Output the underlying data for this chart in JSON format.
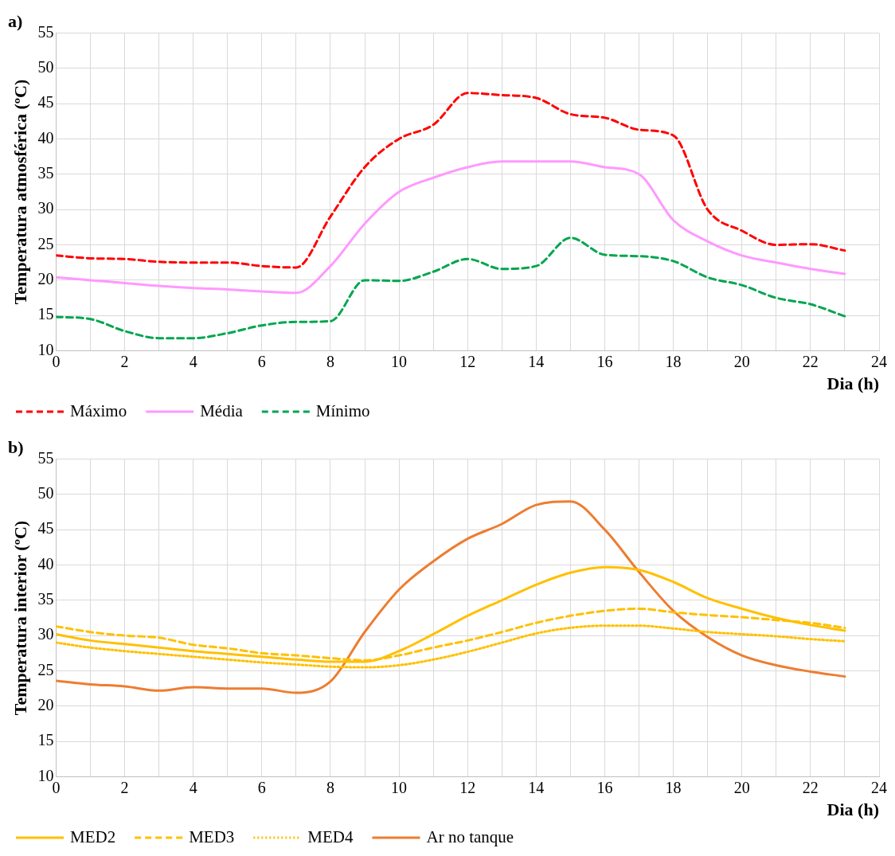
{
  "chart_data": [
    {
      "type": "line",
      "title": "a)",
      "ylabel": "Temperatura atmosférica (ºC)",
      "xlabel": "Dia (h)",
      "legend": "bottom",
      "grid": true,
      "marker": "none",
      "x": [
        0,
        1,
        2,
        3,
        4,
        5,
        6,
        7,
        8,
        9,
        10,
        11,
        12,
        13,
        14,
        15,
        16,
        17,
        18,
        19,
        20,
        21,
        22,
        23
      ],
      "xlim": [
        0,
        24
      ],
      "xticks": [
        0,
        {
          "value": 1,
          "label": null
        },
        2,
        {
          "value": 3,
          "label": null
        },
        4,
        {
          "value": 5,
          "label": null
        },
        6,
        {
          "value": 7,
          "label": null
        },
        8,
        {
          "value": 9,
          "label": null
        },
        10,
        {
          "value": 11,
          "label": null
        },
        12,
        {
          "value": 13,
          "label": null
        },
        14,
        {
          "value": 15,
          "label": null
        },
        16,
        {
          "value": 17,
          "label": null
        },
        18,
        {
          "value": 19,
          "label": null
        },
        20,
        {
          "value": 21,
          "label": null
        },
        22,
        {
          "value": 23,
          "label": null
        },
        24
      ],
      "ylim": [
        10,
        55
      ],
      "yticks": [
        10,
        15,
        20,
        25,
        30,
        35,
        40,
        45,
        50,
        55
      ],
      "series": [
        {
          "name": "Máximo",
          "color": "#ff0000",
          "line_style": "dashed",
          "values": [
            23.5,
            23.1,
            23,
            22.6,
            22.5,
            22.5,
            22,
            21.8,
            29,
            36,
            40,
            42,
            46.5,
            46.2,
            45.8,
            43.5,
            43,
            41.3,
            40.5,
            30,
            27,
            25,
            25.1,
            24.2
          ]
        },
        {
          "name": "Média",
          "color": "#ff99ff",
          "line_style": "solid",
          "values": [
            20.4,
            20,
            19.6,
            19.2,
            18.9,
            18.7,
            18.4,
            18.2,
            22,
            28,
            32.5,
            34.5,
            36,
            36.8,
            36.8,
            36.8,
            36,
            35,
            28.5,
            25.5,
            23.5,
            22.5,
            21.6,
            20.9
          ]
        },
        {
          "name": "Mínimo",
          "color": "#00a650",
          "line_style": "dashed",
          "values": [
            14.8,
            14.5,
            12.8,
            11.8,
            11.8,
            12.5,
            13.6,
            14.1,
            14.2,
            20,
            19.9,
            21.2,
            23,
            21.6,
            22,
            26,
            23.6,
            23.4,
            22.7,
            20.4,
            19.3,
            17.5,
            16.6,
            14.9
          ]
        }
      ]
    },
    {
      "type": "line",
      "title": "b)",
      "ylabel": "Temperatura interior (ºC)",
      "xlabel": "Dia (h)",
      "legend": "bottom",
      "grid": true,
      "marker": "none",
      "x": [
        0,
        1,
        2,
        3,
        4,
        5,
        6,
        7,
        8,
        9,
        10,
        11,
        12,
        13,
        14,
        15,
        16,
        17,
        18,
        19,
        20,
        21,
        22,
        23
      ],
      "xlim": [
        0,
        24
      ],
      "xticks": [
        0,
        {
          "value": 1,
          "label": null
        },
        2,
        {
          "value": 3,
          "label": null
        },
        4,
        {
          "value": 5,
          "label": null
        },
        6,
        {
          "value": 7,
          "label": null
        },
        8,
        {
          "value": 9,
          "label": null
        },
        10,
        {
          "value": 11,
          "label": null
        },
        12,
        {
          "value": 13,
          "label": null
        },
        14,
        {
          "value": 15,
          "label": null
        },
        16,
        {
          "value": 17,
          "label": null
        },
        18,
        {
          "value": 19,
          "label": null
        },
        20,
        {
          "value": 21,
          "label": null
        },
        22,
        {
          "value": 23,
          "label": null
        },
        24
      ],
      "ylim": [
        10,
        55
      ],
      "yticks": [
        10,
        15,
        20,
        25,
        30,
        35,
        40,
        45,
        50,
        55
      ],
      "series": [
        {
          "name": "MED2",
          "color": "#ffc000",
          "line_style": "solid",
          "values": [
            30.2,
            29.3,
            28.8,
            28.3,
            27.8,
            27.4,
            27,
            26.6,
            26.3,
            26.3,
            27.8,
            30.2,
            32.8,
            35,
            37.2,
            38.9,
            39.7,
            39.3,
            37.6,
            35.3,
            33.8,
            32.5,
            31.5,
            30.7
          ]
        },
        {
          "name": "MED3",
          "color": "#ffc000",
          "line_style": "dashed",
          "values": [
            31.3,
            30.5,
            30,
            29.7,
            28.7,
            28.2,
            27.5,
            27.2,
            26.8,
            26.5,
            27.2,
            28.3,
            29.3,
            30.5,
            31.8,
            32.8,
            33.5,
            33.8,
            33.3,
            32.9,
            32.6,
            32.2,
            31.8,
            31.1
          ]
        },
        {
          "name": "MED4",
          "color": "#ffc000",
          "line_style": "dotted",
          "values": [
            29,
            28.3,
            27.8,
            27.4,
            27,
            26.6,
            26.2,
            25.9,
            25.6,
            25.5,
            25.8,
            26.6,
            27.7,
            29,
            30.3,
            31.1,
            31.4,
            31.4,
            31,
            30.5,
            30.2,
            29.9,
            29.5,
            29.2
          ]
        },
        {
          "name": "Ar no tanque",
          "color": "#ed7d31",
          "line_style": "solid",
          "values": [
            23.6,
            23.1,
            22.8,
            22.2,
            22.7,
            22.5,
            22.5,
            21.9,
            23.5,
            30.5,
            36.5,
            40.5,
            43.7,
            45.8,
            48.5,
            49,
            45,
            39,
            33.5,
            29.8,
            27.2,
            25.8,
            24.9,
            24.2
          ]
        }
      ]
    }
  ]
}
